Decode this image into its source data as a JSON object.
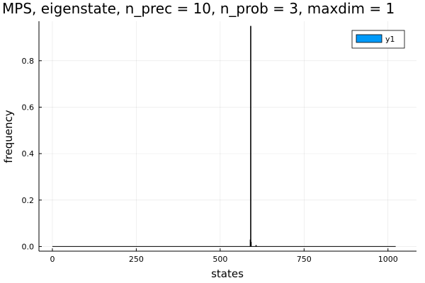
{
  "chart_data": {
    "type": "bar",
    "title": "MPS, eigenstate, n_prec = 10, n_prob = 3, maxdim = 1",
    "xlabel": "states",
    "ylabel": "frequency",
    "xlim": [
      -40,
      1085
    ],
    "ylim": [
      -0.02,
      0.97
    ],
    "xticks": [
      0,
      250,
      500,
      750,
      1000
    ],
    "yticks": [
      0.0,
      0.2,
      0.4,
      0.6,
      0.8
    ],
    "ytick_labels": [
      "0.0",
      "0.2",
      "0.4",
      "0.6",
      "0.8"
    ],
    "grid": true,
    "legend_position": "top-right",
    "series": [
      {
        "name": "y1",
        "color": "#009af9",
        "bar_outline": "#000000",
        "x_range": [
          0,
          1023
        ],
        "baseline_value": 0.0,
        "points": [
          {
            "x": 590,
            "y": 0.03
          },
          {
            "x": 591,
            "y": 0.95
          },
          {
            "x": 592,
            "y": 0.02
          },
          {
            "x": 607,
            "y": 0.006
          }
        ]
      }
    ]
  }
}
